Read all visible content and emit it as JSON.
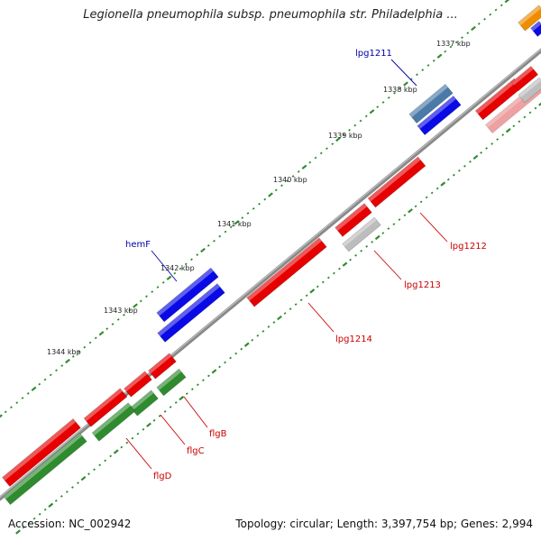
{
  "title": "Legionella pneumophila subsp. pneumophila str. Philadelphia ...",
  "footer": {
    "accession": "Accession: NC_002942",
    "summary": "Topology: circular; Length: 3,397,754 bp; Genes: 2,994"
  },
  "colors": {
    "backbone": "#7a7a7a",
    "forward_gene": "#e60000",
    "reverse_gene": "#0a0ae6",
    "rna_gene": "#2e8b2e",
    "pseudo_gene": "#bdbdbd",
    "selected_gene": "#4a7aa8",
    "other_gene": "#f08c00",
    "tick": "#2e8b2e",
    "gene_label_forward": "#cc0000",
    "gene_label_reverse": "#0000aa"
  },
  "ticks": [
    {
      "label": "1337 kbp"
    },
    {
      "label": "1338 kbp"
    },
    {
      "label": "1339 kbp"
    },
    {
      "label": "1340 kbp"
    },
    {
      "label": "1341 kbp"
    },
    {
      "label": "1342 kbp"
    },
    {
      "label": "1343 kbp"
    },
    {
      "label": "1344 kbp"
    }
  ],
  "genes": [
    {
      "name": "lpg1211"
    },
    {
      "name": "hemF"
    },
    {
      "name": "lpg1212"
    },
    {
      "name": "lpg1213"
    },
    {
      "name": "lpg1214"
    },
    {
      "name": "flgB"
    },
    {
      "name": "flgC"
    },
    {
      "name": "flgD"
    }
  ]
}
